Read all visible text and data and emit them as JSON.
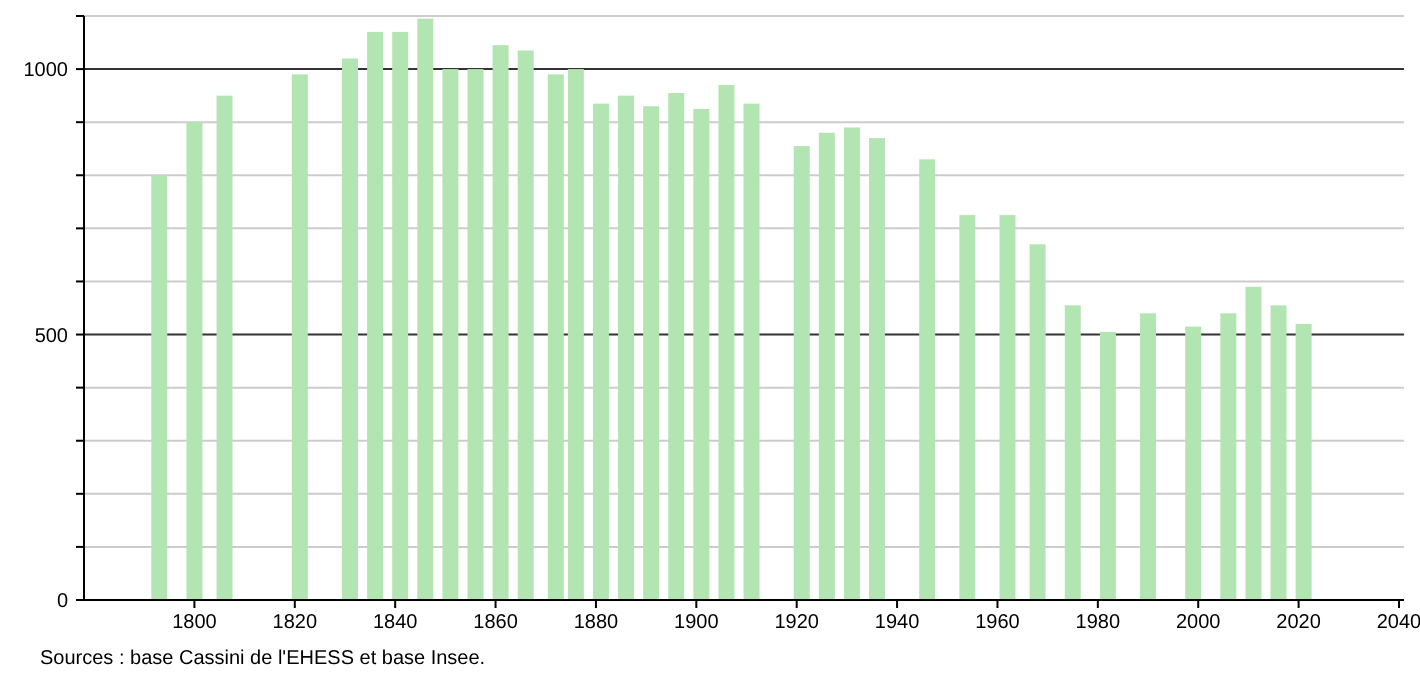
{
  "chart_data": {
    "type": "bar",
    "color": "#b3e5b3",
    "x": [
      1793,
      1800,
      1806,
      1821,
      1831,
      1836,
      1841,
      1846,
      1851,
      1856,
      1861,
      1866,
      1872,
      1876,
      1881,
      1886,
      1891,
      1896,
      1901,
      1906,
      1911,
      1921,
      1926,
      1931,
      1936,
      1946,
      1954,
      1962,
      1968,
      1975,
      1982,
      1990,
      1999,
      2006,
      2011,
      2016,
      2021
    ],
    "values": [
      800,
      900,
      950,
      990,
      1020,
      1070,
      1070,
      1095,
      1000,
      1000,
      1045,
      1035,
      990,
      1000,
      935,
      950,
      930,
      955,
      925,
      970,
      935,
      855,
      880,
      890,
      870,
      830,
      725,
      725,
      670,
      555,
      505,
      540,
      515,
      540,
      590,
      555,
      520
    ],
    "xlim": [
      1778,
      2041
    ],
    "xticks": [
      1800,
      1820,
      1840,
      1860,
      1880,
      1900,
      1920,
      1940,
      1960,
      1980,
      2000,
      2020,
      2040
    ],
    "ylim": [
      0,
      1100
    ],
    "yticks": [
      0,
      {
        "value": 100,
        "label": null
      },
      {
        "value": 200,
        "label": null
      },
      {
        "value": 300,
        "label": null
      },
      {
        "value": 400,
        "label": null
      },
      500,
      {
        "value": 600,
        "label": null
      },
      {
        "value": 700,
        "label": null
      },
      {
        "value": 800,
        "label": null
      },
      {
        "value": 900,
        "label": null
      },
      1000,
      {
        "value": 1100,
        "label": null
      }
    ],
    "grid": "y",
    "annotations": [
      "Sources : base Cassini de l'EHESS et base Insee."
    ]
  }
}
